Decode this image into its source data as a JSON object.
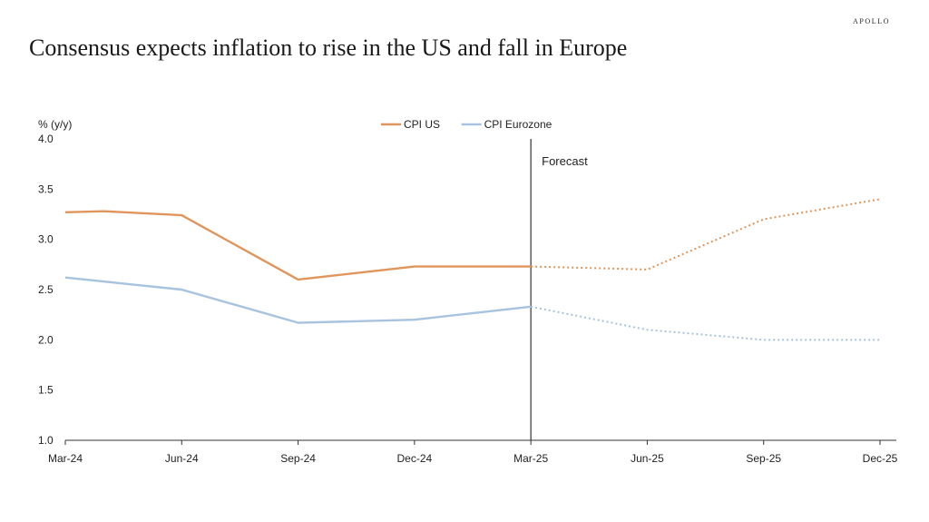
{
  "brand": "APOLLO",
  "title": "Consensus expects inflation to rise in the US and fall in Europe",
  "chart_data": {
    "type": "line",
    "ylabel": "% (y/y)",
    "ylim": [
      1.0,
      4.0
    ],
    "yticks": [
      "4.0",
      "3.5",
      "3.0",
      "2.5",
      "2.0",
      "1.5",
      "1.0"
    ],
    "xticks": [
      "Mar-24",
      "Jun-24",
      "Sep-24",
      "Dec-24",
      "Mar-25",
      "Jun-25",
      "Sep-25",
      "Dec-25"
    ],
    "forecast_label": "Forecast",
    "forecast_start": "Mar-25",
    "grid": false,
    "legend_position": "top-center",
    "series": [
      {
        "name": "CPI US",
        "color": "#e0955c",
        "x": [
          "Mar-24",
          "Apr-24",
          "Jun-24",
          "Sep-24",
          "Dec-24",
          "Mar-25",
          "Jun-25",
          "Sep-25",
          "Dec-25"
        ],
        "values": [
          3.27,
          3.28,
          3.24,
          2.6,
          2.73,
          2.73,
          2.7,
          3.2,
          3.4
        ]
      },
      {
        "name": "CPI Eurozone",
        "color": "#a7c3df",
        "x": [
          "Mar-24",
          "Jun-24",
          "Sep-24",
          "Dec-24",
          "Mar-25",
          "Jun-25",
          "Sep-25",
          "Dec-25"
        ],
        "values": [
          2.62,
          2.5,
          2.17,
          2.2,
          2.33,
          2.1,
          2.0,
          2.0
        ]
      }
    ]
  }
}
